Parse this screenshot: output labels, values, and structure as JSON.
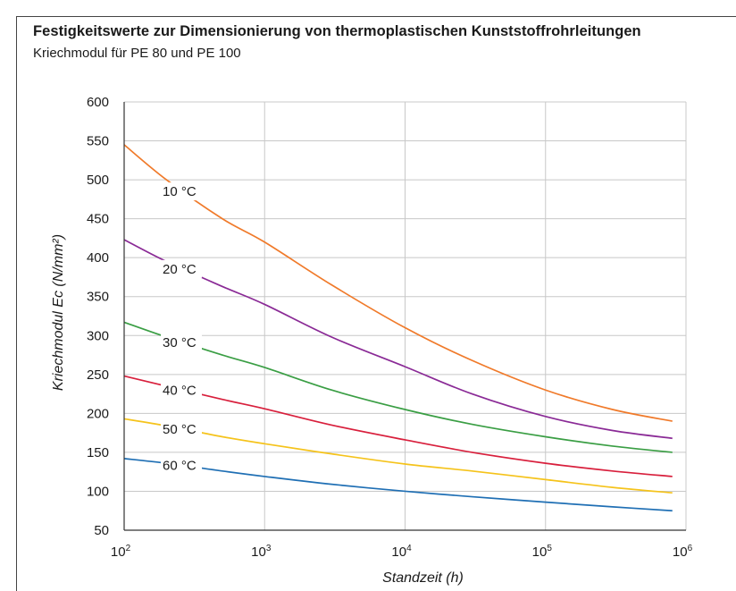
{
  "title": "Festigkeitswerte zur Dimensionierung von thermoplastischen Kunststoffrohrleitungen",
  "subtitle": "Kriechmodul für PE 80 und PE 100",
  "chart_data": {
    "type": "line",
    "title": "Festigkeitswerte zur Dimensionierung von thermoplastischen Kunststoffrohrleitungen",
    "subtitle": "Kriechmodul für PE 80 und PE 100",
    "xlabel": "Standzeit (h)",
    "ylabel": "Kriechmodul Ec (N/mm²)",
    "x_scale": "log",
    "xlim": [
      100,
      1000000
    ],
    "ylim": [
      50,
      600
    ],
    "grid": true,
    "x_ticks": [
      {
        "value": 100,
        "base": "10",
        "exp": "2"
      },
      {
        "value": 1000,
        "base": "10",
        "exp": "3"
      },
      {
        "value": 10000,
        "base": "10",
        "exp": "4"
      },
      {
        "value": 100000,
        "base": "10",
        "exp": "5"
      },
      {
        "value": 1000000,
        "base": "10",
        "exp": "6"
      }
    ],
    "y_ticks": [
      50,
      100,
      150,
      200,
      250,
      300,
      350,
      400,
      450,
      500,
      550,
      600
    ],
    "series": [
      {
        "name": "10 °C",
        "color": "#f07a2a",
        "x": [
          100,
          200,
          500,
          1000,
          3000,
          10000,
          30000,
          100000,
          300000,
          800000
        ],
        "y": [
          545,
          500,
          450,
          420,
          365,
          310,
          268,
          230,
          205,
          190
        ]
      },
      {
        "name": "20 °C",
        "color": "#8a2a96",
        "x": [
          100,
          200,
          500,
          1000,
          3000,
          10000,
          30000,
          100000,
          300000,
          800000
        ],
        "y": [
          423,
          395,
          363,
          340,
          298,
          260,
          225,
          196,
          178,
          168
        ]
      },
      {
        "name": "30 °C",
        "color": "#3a9e44",
        "x": [
          100,
          200,
          500,
          1000,
          3000,
          10000,
          30000,
          100000,
          300000,
          800000
        ],
        "y": [
          317,
          298,
          275,
          259,
          230,
          205,
          186,
          170,
          158,
          150
        ]
      },
      {
        "name": "40 °C",
        "color": "#d81f3c",
        "x": [
          100,
          200,
          500,
          1000,
          3000,
          10000,
          30000,
          100000,
          300000,
          800000
        ],
        "y": [
          248,
          235,
          218,
          206,
          185,
          166,
          150,
          136,
          126,
          119
        ]
      },
      {
        "name": "50 °C",
        "color": "#f5c31b",
        "x": [
          100,
          200,
          500,
          1000,
          3000,
          10000,
          30000,
          100000,
          300000,
          800000
        ],
        "y": [
          193,
          184,
          170,
          161,
          148,
          135,
          126,
          115,
          105,
          98
        ]
      },
      {
        "name": "60 °C",
        "color": "#1f6fb4",
        "x": [
          100,
          200,
          500,
          1000,
          3000,
          10000,
          30000,
          100000,
          300000,
          800000
        ],
        "y": [
          142,
          136,
          126,
          119,
          109,
          100,
          93,
          86,
          80,
          75
        ]
      }
    ]
  }
}
